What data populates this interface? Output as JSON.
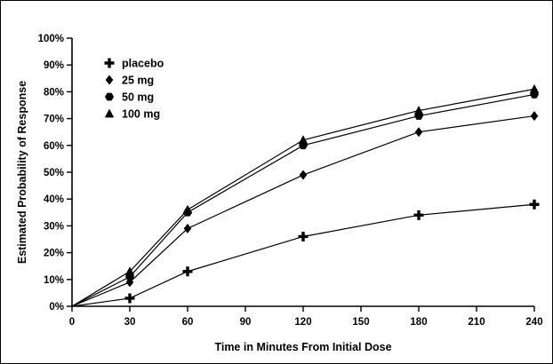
{
  "chart_data": {
    "type": "line",
    "title": "",
    "xlabel": "Time in Minutes From Initial Dose",
    "ylabel": "Estimated Probability of Response",
    "xlim": [
      0,
      240
    ],
    "ylim": [
      0,
      100
    ],
    "x_ticks": [
      0,
      30,
      60,
      90,
      120,
      150,
      180,
      210,
      240
    ],
    "y_ticks": [
      "0%",
      "10%",
      "20%",
      "30%",
      "40%",
      "50%",
      "60%",
      "70%",
      "80%",
      "90%",
      "100%"
    ],
    "grid": false,
    "legend_position": "upper-left-inside",
    "series": [
      {
        "name": "placebo",
        "marker": "plus",
        "x": [
          0,
          30,
          60,
          120,
          180,
          240
        ],
        "y": [
          0,
          3,
          13,
          26,
          34,
          38
        ]
      },
      {
        "name": "25 mg",
        "marker": "diamond",
        "x": [
          0,
          30,
          60,
          120,
          180,
          240
        ],
        "y": [
          0,
          9,
          29,
          49,
          65,
          71
        ]
      },
      {
        "name": "50 mg",
        "marker": "hexagon",
        "x": [
          0,
          30,
          60,
          120,
          180,
          240
        ],
        "y": [
          0,
          11,
          35,
          60,
          71,
          79
        ]
      },
      {
        "name": "100 mg",
        "marker": "triangle",
        "x": [
          0,
          30,
          60,
          120,
          180,
          240
        ],
        "y": [
          0,
          13,
          36,
          62,
          73,
          81
        ]
      }
    ]
  }
}
